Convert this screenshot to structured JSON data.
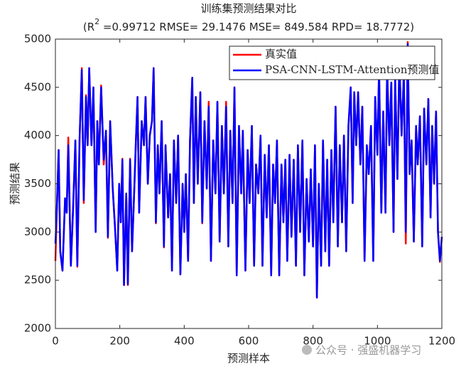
{
  "chart_data": {
    "type": "line",
    "title": "训练集预测结果对比",
    "subtitle": [
      "(R",
      "2",
      " =0.99712 RMSE= 29.1476 MSE= 849.584 RPD= 18.7772)"
    ],
    "xlabel": "预测样本",
    "ylabel": "预测结果",
    "annotation": "公众号 · 强盛机器学习",
    "xlim": [
      0,
      1200
    ],
    "xticks": [
      0,
      200,
      400,
      600,
      800,
      1000,
      1200
    ],
    "ylim": [
      2000,
      5000
    ],
    "yticks": [
      2000,
      2500,
      3000,
      3500,
      4000,
      4500,
      5000
    ],
    "legend": "northeast",
    "x": [
      0,
      5,
      10,
      15,
      22,
      30,
      35,
      40,
      48,
      55,
      62,
      68,
      75,
      82,
      88,
      95,
      100,
      105,
      112,
      118,
      125,
      130,
      135,
      142,
      150,
      157,
      163,
      170,
      178,
      185,
      192,
      198,
      203,
      208,
      213,
      220,
      225,
      232,
      238,
      245,
      250,
      255,
      260,
      268,
      275,
      280,
      287,
      293,
      300,
      305,
      312,
      318,
      323,
      330,
      337,
      342,
      350,
      356,
      362,
      368,
      375,
      381,
      388,
      395,
      400,
      405,
      412,
      418,
      425,
      430,
      436,
      442,
      450,
      456,
      463,
      470,
      476,
      483,
      490,
      497,
      503,
      510,
      517,
      523,
      530,
      537,
      543,
      550,
      556,
      563,
      570,
      577,
      582,
      590,
      597,
      603,
      610,
      617,
      623,
      630,
      637,
      643,
      650,
      656,
      663,
      670,
      676,
      682,
      688,
      695,
      702,
      708,
      714,
      720,
      727,
      733,
      740,
      747,
      753,
      760,
      767,
      773,
      780,
      787,
      793,
      800,
      806,
      812,
      818,
      825,
      831,
      838,
      844,
      850,
      857,
      863,
      870,
      877,
      883,
      890,
      896,
      903,
      910,
      917,
      923,
      928,
      934,
      940,
      947,
      953,
      960,
      967,
      973,
      980,
      987,
      993,
      1000,
      1005,
      1012,
      1018,
      1025,
      1030,
      1037,
      1043,
      1050,
      1055,
      1062,
      1068,
      1075,
      1082,
      1088,
      1094,
      1100,
      1106,
      1113,
      1120,
      1125,
      1132,
      1139,
      1145,
      1152,
      1158,
      1165,
      1170,
      1176,
      1182,
      1188,
      1194,
      1200
    ],
    "series": [
      {
        "name": "真实值",
        "color": "#ff0000",
        "values": [
          2700,
          3300,
          3850,
          2800,
          2600,
          3350,
          3200,
          3980,
          2650,
          3250,
          3950,
          2640,
          3950,
          4700,
          3300,
          4420,
          3900,
          4700,
          3900,
          4500,
          3000,
          4150,
          3700,
          4520,
          3700,
          4050,
          2940,
          4150,
          3450,
          3050,
          2600,
          3500,
          3100,
          3760,
          2450,
          3400,
          2450,
          3760,
          2800,
          3450,
          3950,
          4400,
          3200,
          4150,
          3900,
          4400,
          3500,
          4000,
          4150,
          4700,
          3090,
          3900,
          3400,
          4150,
          2840,
          3900,
          3150,
          3600,
          2600,
          3950,
          3300,
          4000,
          2560,
          3500,
          3000,
          3600,
          2700,
          3950,
          4600,
          3300,
          4400,
          3500,
          4450,
          3090,
          4150,
          3450,
          4350,
          2700,
          3950,
          3400,
          4350,
          2900,
          4100,
          3400,
          4350,
          2850,
          4050,
          3300,
          4500,
          2550,
          4100,
          3400,
          4050,
          2600,
          3850,
          3300,
          4100,
          2650,
          3700,
          3400,
          4000,
          2650,
          3800,
          3150,
          3900,
          2550,
          3700,
          3300,
          3950,
          2550,
          3700,
          3100,
          3750,
          2700,
          3800,
          2950,
          3750,
          2650,
          3900,
          3000,
          3950,
          2550,
          3550,
          2900,
          3650,
          2850,
          3900,
          2320,
          3500,
          2650,
          3950,
          2800,
          3750,
          2650,
          3850,
          3100,
          4300,
          2850,
          3900,
          3100,
          4000,
          2800,
          4100,
          4500,
          3300,
          4450,
          3900,
          4450,
          3700,
          4300,
          2700,
          3900,
          3600,
          4100,
          2700,
          4400,
          3800,
          4700,
          3200,
          4250,
          3200,
          4700,
          3900,
          4550,
          3000,
          4600,
          3550,
          4800,
          4000,
          4650,
          2880,
          4970,
          3600,
          3950,
          2900,
          4100,
          3700,
          4200,
          2850,
          4280,
          3700,
          4380,
          3150,
          4100,
          3500,
          4250,
          3000,
          2690,
          2950
        ]
      },
      {
        "name": "PSA-CNN-LSTM-Attention预测值",
        "color": "#0000ff",
        "values": [
          2880,
          3300,
          3850,
          2800,
          2600,
          3350,
          3200,
          3900,
          2650,
          3250,
          3950,
          2650,
          3950,
          4680,
          3330,
          4400,
          3900,
          4700,
          3900,
          4500,
          3000,
          4150,
          3700,
          4500,
          3750,
          4050,
          2950,
          4150,
          3450,
          3050,
          2600,
          3500,
          3100,
          3750,
          2450,
          3400,
          2460,
          3750,
          2800,
          3450,
          3950,
          4400,
          3200,
          4150,
          3900,
          4400,
          3500,
          4000,
          4150,
          4700,
          3100,
          3900,
          3400,
          4150,
          2850,
          3900,
          3150,
          3600,
          2600,
          3950,
          3300,
          4000,
          2560,
          3500,
          3000,
          3600,
          2700,
          3950,
          4600,
          3300,
          4400,
          3500,
          4450,
          3100,
          4150,
          3450,
          4300,
          2700,
          3950,
          3400,
          4350,
          2900,
          4100,
          3400,
          4300,
          2850,
          4050,
          3300,
          4500,
          2550,
          4100,
          3400,
          4050,
          2600,
          3850,
          3300,
          4100,
          2650,
          3700,
          3400,
          4000,
          2650,
          3800,
          3150,
          3900,
          2550,
          3700,
          3300,
          3950,
          2550,
          3700,
          3100,
          3750,
          2700,
          3800,
          2950,
          3750,
          2650,
          3900,
          3000,
          3950,
          2550,
          3550,
          2900,
          3650,
          2850,
          3900,
          2320,
          3500,
          2650,
          3950,
          2800,
          3750,
          2650,
          3850,
          3100,
          4300,
          2850,
          3900,
          3100,
          4000,
          2800,
          4100,
          4500,
          3300,
          4450,
          3900,
          4450,
          3700,
          4300,
          2700,
          3900,
          3600,
          4100,
          2700,
          4400,
          3800,
          4700,
          3200,
          4250,
          3200,
          4700,
          3900,
          4550,
          3000,
          4600,
          3550,
          4800,
          4000,
          4650,
          3000,
          4950,
          3600,
          3950,
          2900,
          4100,
          3700,
          4200,
          2850,
          4280,
          3700,
          4380,
          3150,
          4100,
          3500,
          4250,
          3000,
          2700,
          2950
        ]
      }
    ]
  }
}
